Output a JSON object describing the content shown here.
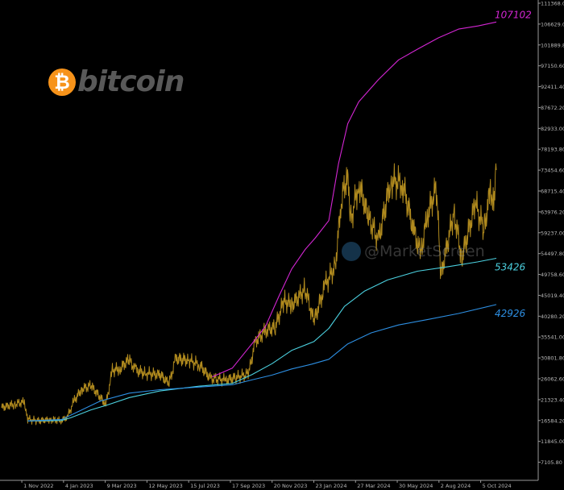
{
  "brand": {
    "coin_symbol": "₿",
    "wordmark": "bitcoin"
  },
  "watermark": {
    "text": "@MarketScreen"
  },
  "chart_data": {
    "type": "line",
    "title": "",
    "xlabel": "",
    "ylabel": "",
    "ylim": [
      3000,
      111368
    ],
    "y_ticks": [
      "111368.00",
      "106629.00",
      "101889.80",
      "97150.60",
      "92411.40",
      "87672.20",
      "82933.00",
      "78193.80",
      "73454.60",
      "68715.40",
      "63976.20",
      "59237.00",
      "54497.80",
      "49758.60",
      "45019.40",
      "40280.20",
      "35541.00",
      "30801.80",
      "26062.60",
      "21323.40",
      "16584.20",
      "11845.00",
      "7105.80"
    ],
    "x_ticks": [
      "1 Nov 2022",
      "4 Jan 2023",
      "9 Mar 2023",
      "12 May 2023",
      "15 Jul 2023",
      "17 Sep 2023",
      "20 Nov 2023",
      "23 Jan 2024",
      "27 Mar 2024",
      "30 May 2024",
      "2 Aug 2024",
      "5 Oct 2024"
    ],
    "grid": false,
    "series": [
      {
        "role": "price",
        "color": "#b08a1e",
        "points": [
          [
            "2022-10-01",
            19500
          ],
          [
            "2022-10-20",
            20300
          ],
          [
            "2022-11-05",
            20800
          ],
          [
            "2022-11-10",
            16900
          ],
          [
            "2022-11-25",
            16500
          ],
          [
            "2022-12-15",
            16800
          ],
          [
            "2022-12-31",
            16550
          ],
          [
            "2023-01-10",
            17400
          ],
          [
            "2023-01-20",
            21000
          ],
          [
            "2023-02-01",
            23700
          ],
          [
            "2023-02-15",
            24500
          ],
          [
            "2023-03-10",
            20200
          ],
          [
            "2023-03-20",
            28000
          ],
          [
            "2023-04-01",
            28400
          ],
          [
            "2023-04-14",
            30400
          ],
          [
            "2023-04-25",
            28000
          ],
          [
            "2023-05-10",
            27300
          ],
          [
            "2023-06-01",
            27000
          ],
          [
            "2023-06-15",
            25000
          ],
          [
            "2023-06-25",
            30600
          ],
          [
            "2023-07-15",
            30300
          ],
          [
            "2023-08-01",
            29200
          ],
          [
            "2023-08-17",
            26200
          ],
          [
            "2023-09-10",
            25800
          ],
          [
            "2023-09-25",
            26300
          ],
          [
            "2023-10-15",
            27200
          ],
          [
            "2023-10-25",
            34500
          ],
          [
            "2023-11-10",
            37000
          ],
          [
            "2023-11-25",
            37800
          ],
          [
            "2023-12-08",
            43800
          ],
          [
            "2023-12-20",
            42800
          ],
          [
            "2024-01-10",
            46500
          ],
          [
            "2024-01-23",
            39000
          ],
          [
            "2024-02-10",
            47500
          ],
          [
            "2024-02-25",
            51700
          ],
          [
            "2024-03-05",
            66000
          ],
          [
            "2024-03-14",
            72500
          ],
          [
            "2024-03-20",
            62000
          ],
          [
            "2024-04-01",
            70500
          ],
          [
            "2024-04-15",
            63000
          ],
          [
            "2024-05-01",
            57500
          ],
          [
            "2024-05-20",
            71000
          ],
          [
            "2024-06-07",
            70500
          ],
          [
            "2024-06-24",
            60000
          ],
          [
            "2024-07-05",
            54500
          ],
          [
            "2024-07-15",
            63000
          ],
          [
            "2024-07-29",
            69500
          ],
          [
            "2024-08-05",
            49500
          ],
          [
            "2024-08-25",
            64000
          ],
          [
            "2024-09-06",
            53500
          ],
          [
            "2024-09-27",
            65800
          ],
          [
            "2024-10-10",
            60000
          ],
          [
            "2024-10-20",
            69000
          ],
          [
            "2024-10-25",
            66500
          ],
          [
            "2024-10-29",
            73500
          ]
        ]
      },
      {
        "role": "upper",
        "color": "#d426d4",
        "points": [
          [
            "2023-08-20",
            26500
          ],
          [
            "2023-09-20",
            28500
          ],
          [
            "2023-10-20",
            34000
          ],
          [
            "2023-11-10",
            38000
          ],
          [
            "2023-12-01",
            45000
          ],
          [
            "2023-12-20",
            51000
          ],
          [
            "2024-01-10",
            55500
          ],
          [
            "2024-01-25",
            58000
          ],
          [
            "2024-02-15",
            62000
          ],
          [
            "2024-03-01",
            75000
          ],
          [
            "2024-03-15",
            84000
          ],
          [
            "2024-04-01",
            89000
          ],
          [
            "2024-05-01",
            94000
          ],
          [
            "2024-06-01",
            98500
          ],
          [
            "2024-07-01",
            101000
          ],
          [
            "2024-08-01",
            103500
          ],
          [
            "2024-09-01",
            105500
          ],
          [
            "2024-10-01",
            106200
          ],
          [
            "2024-10-29",
            107102
          ]
        ],
        "end_label": "107102"
      },
      {
        "role": "mid",
        "color": "#4bd0df",
        "points": [
          [
            "2022-11-10",
            16500
          ],
          [
            "2023-01-01",
            16600
          ],
          [
            "2023-01-15",
            17200
          ],
          [
            "2023-02-15",
            19000
          ],
          [
            "2023-03-10",
            20000
          ],
          [
            "2023-04-15",
            21800
          ],
          [
            "2023-06-01",
            23300
          ],
          [
            "2023-08-01",
            24400
          ],
          [
            "2023-09-20",
            25000
          ],
          [
            "2023-10-20",
            27000
          ],
          [
            "2023-11-20",
            29500
          ],
          [
            "2023-12-20",
            32500
          ],
          [
            "2024-01-23",
            34500
          ],
          [
            "2024-02-15",
            37500
          ],
          [
            "2024-03-10",
            42500
          ],
          [
            "2024-04-10",
            46000
          ],
          [
            "2024-05-15",
            48500
          ],
          [
            "2024-06-30",
            50500
          ],
          [
            "2024-08-15",
            51500
          ],
          [
            "2024-09-30",
            52600
          ],
          [
            "2024-10-29",
            53426
          ]
        ],
        "end_label": "53426"
      },
      {
        "role": "lower",
        "color": "#2d8fe3",
        "points": [
          [
            "2022-11-10",
            16500
          ],
          [
            "2023-01-01",
            16800
          ],
          [
            "2023-02-01",
            19000
          ],
          [
            "2023-03-01",
            21000
          ],
          [
            "2023-04-15",
            22800
          ],
          [
            "2023-06-01",
            23600
          ],
          [
            "2023-08-01",
            24200
          ],
          [
            "2023-09-20",
            24700
          ],
          [
            "2023-10-20",
            25800
          ],
          [
            "2023-11-20",
            26900
          ],
          [
            "2023-12-20",
            28300
          ],
          [
            "2024-01-20",
            29400
          ],
          [
            "2024-02-15",
            30500
          ],
          [
            "2024-03-15",
            34000
          ],
          [
            "2024-04-20",
            36500
          ],
          [
            "2024-06-01",
            38300
          ],
          [
            "2024-07-15",
            39500
          ],
          [
            "2024-09-01",
            40900
          ],
          [
            "2024-10-29",
            42926
          ]
        ],
        "end_label": "42926"
      }
    ]
  }
}
